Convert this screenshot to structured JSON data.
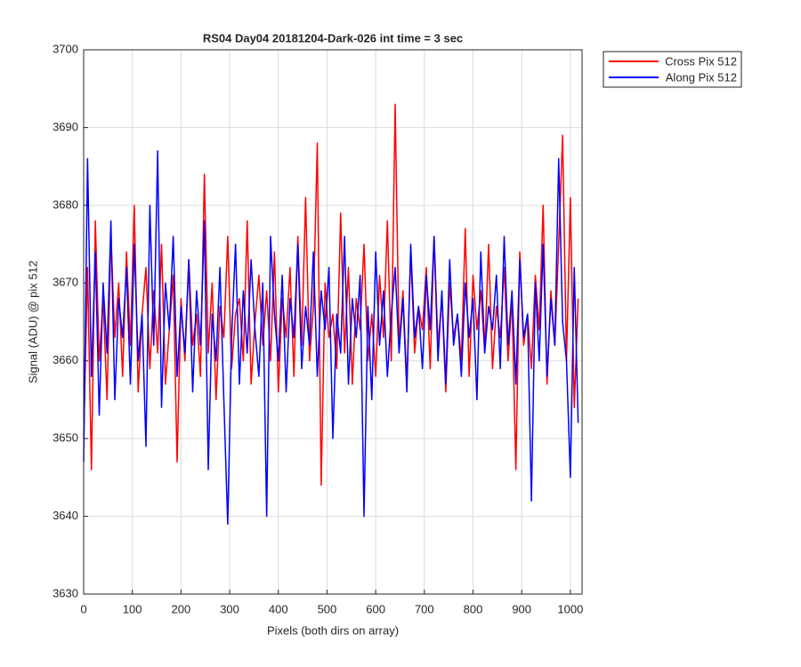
{
  "chart_data": {
    "type": "line",
    "title": "RS04 Day04 20181204-Dark-026 int time = 3 sec",
    "x_label": "Pixels (both dirs on array)",
    "y_label": "Signal (ADU) @ pix 512",
    "x": [
      0,
      8,
      16,
      24,
      32,
      40,
      48,
      56,
      64,
      72,
      80,
      88,
      96,
      104,
      112,
      120,
      128,
      136,
      144,
      152,
      160,
      168,
      176,
      184,
      192,
      200,
      208,
      216,
      224,
      232,
      240,
      248,
      256,
      264,
      272,
      280,
      288,
      296,
      304,
      312,
      320,
      328,
      336,
      344,
      352,
      360,
      368,
      376,
      384,
      392,
      400,
      408,
      416,
      424,
      432,
      440,
      448,
      456,
      464,
      472,
      480,
      488,
      496,
      504,
      512,
      520,
      528,
      536,
      544,
      552,
      560,
      568,
      576,
      584,
      592,
      600,
      608,
      616,
      624,
      632,
      640,
      648,
      656,
      664,
      672,
      680,
      688,
      696,
      704,
      712,
      720,
      728,
      736,
      744,
      752,
      760,
      768,
      776,
      784,
      792,
      800,
      808,
      816,
      824,
      832,
      840,
      848,
      856,
      864,
      872,
      880,
      888,
      896,
      904,
      912,
      920,
      928,
      936,
      944,
      952,
      960,
      968,
      976,
      984,
      992,
      1000,
      1008,
      1016
    ],
    "series": [
      {
        "name": "Cross Pix 512",
        "color": "#ff0000",
        "values": [
          3650,
          3672,
          3646,
          3678,
          3660,
          3668,
          3655,
          3676,
          3663,
          3670,
          3658,
          3674,
          3662,
          3680,
          3656,
          3666,
          3672,
          3659,
          3669,
          3661,
          3675,
          3657,
          3664,
          3671,
          3647,
          3668,
          3660,
          3673,
          3662,
          3666,
          3658,
          3684,
          3661,
          3670,
          3655,
          3667,
          3663,
          3676,
          3659,
          3666,
          3668,
          3660,
          3678,
          3657,
          3665,
          3671,
          3662,
          3669,
          3660,
          3674,
          3656,
          3668,
          3663,
          3672,
          3658,
          3676,
          3662,
          3681,
          3660,
          3667,
          3688,
          3644,
          3670,
          3663,
          3666,
          3659,
          3679,
          3661,
          3672,
          3657,
          3668,
          3664,
          3675,
          3660,
          3666,
          3658,
          3671,
          3663,
          3678,
          3660,
          3693,
          3662,
          3669,
          3657,
          3674,
          3661,
          3667,
          3664,
          3672,
          3659,
          3676,
          3662,
          3668,
          3656,
          3670,
          3663,
          3666,
          3660,
          3677,
          3658,
          3671,
          3664,
          3669,
          3661,
          3675,
          3659,
          3667,
          3663,
          3672,
          3660,
          3668,
          3646,
          3674,
          3662,
          3666,
          3659,
          3671,
          3664,
          3680,
          3657,
          3669,
          3662,
          3675,
          3689,
          3660,
          3681,
          3654,
          3668
        ]
      },
      {
        "name": "Along Pix 512",
        "color": "#0000ff",
        "values": [
          3647,
          3686,
          3658,
          3674,
          3653,
          3670,
          3661,
          3678,
          3655,
          3668,
          3663,
          3672,
          3657,
          3675,
          3660,
          3666,
          3649,
          3680,
          3662,
          3687,
          3654,
          3670,
          3664,
          3676,
          3658,
          3667,
          3661,
          3673,
          3656,
          3669,
          3662,
          3678,
          3646,
          3666,
          3660,
          3672,
          3655,
          3639,
          3663,
          3675,
          3657,
          3669,
          3661,
          3673,
          3664,
          3658,
          3670,
          3640,
          3676,
          3666,
          3660,
          3671,
          3656,
          3668,
          3663,
          3675,
          3659,
          3667,
          3662,
          3674,
          3658,
          3669,
          3664,
          3672,
          3650,
          3666,
          3661,
          3676,
          3657,
          3668,
          3663,
          3671,
          3640,
          3667,
          3655,
          3674,
          3662,
          3669,
          3658,
          3666,
          3672,
          3661,
          3668,
          3656,
          3675,
          3663,
          3667,
          3659,
          3671,
          3664,
          3676,
          3660,
          3669,
          3657,
          3673,
          3662,
          3666,
          3658,
          3670,
          3663,
          3668,
          3655,
          3674,
          3661,
          3667,
          3664,
          3671,
          3659,
          3676,
          3662,
          3669,
          3657,
          3673,
          3663,
          3666,
          3642,
          3670,
          3660,
          3675,
          3658,
          3668,
          3662,
          3686,
          3665,
          3660,
          3645,
          3672,
          3652
        ]
      }
    ],
    "xlim": [
      0,
      1024
    ],
    "xticks": [
      0,
      100,
      200,
      300,
      400,
      500,
      600,
      700,
      800,
      900,
      1000
    ],
    "ylim": [
      3630,
      3700
    ],
    "yticks": [
      3630,
      3640,
      3650,
      3660,
      3670,
      3680,
      3690,
      3700
    ],
    "grid": true,
    "legend": "outside-top-right"
  }
}
